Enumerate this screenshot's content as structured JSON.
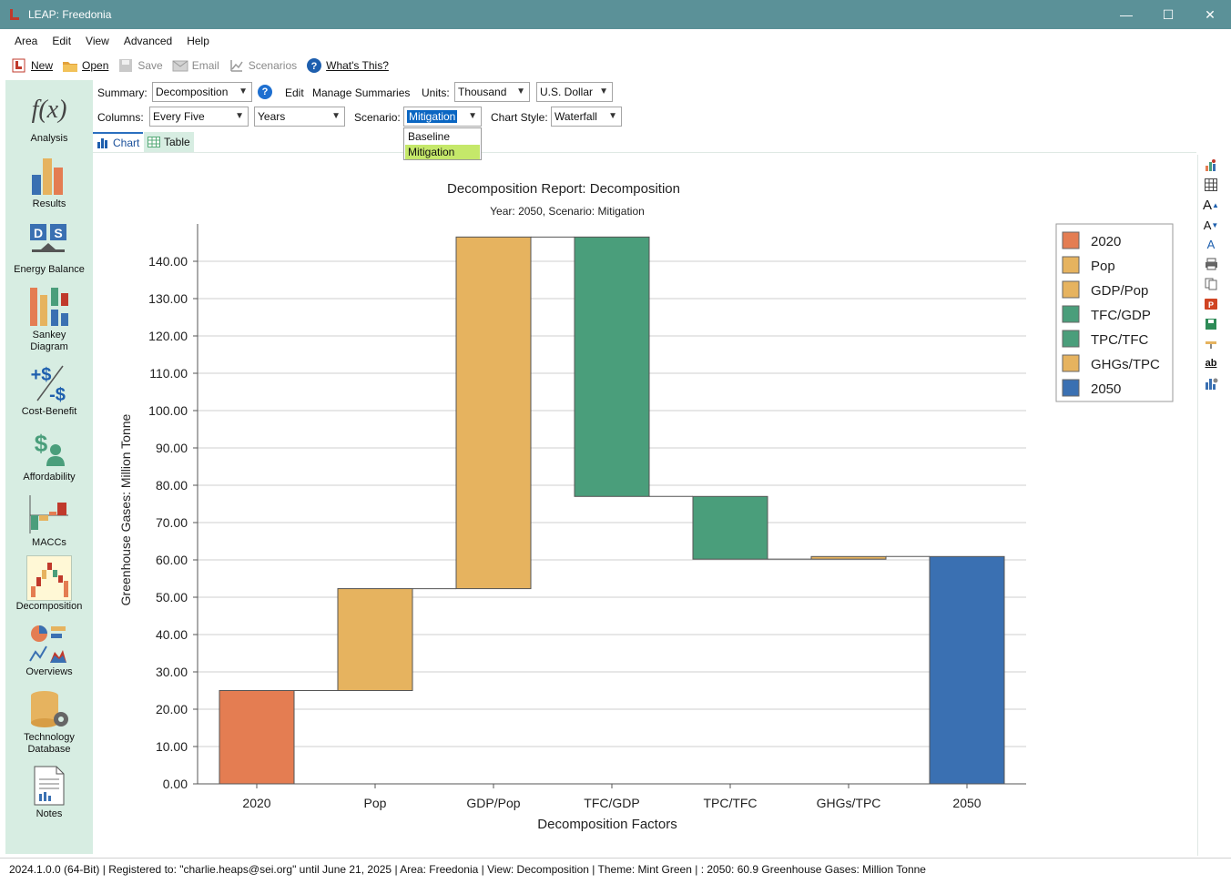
{
  "window": {
    "title": "LEAP: Freedonia",
    "minimize": "—",
    "maximize": "☐",
    "close": "✕"
  },
  "menu": [
    "Area",
    "Edit",
    "View",
    "Advanced",
    "Help"
  ],
  "toolbar": {
    "new": "New",
    "open": "Open",
    "save": "Save",
    "email": "Email",
    "scenarios": "Scenarios",
    "whats_this": "What's This?"
  },
  "sidebar": [
    {
      "label": "Analysis",
      "icon": "function-icon"
    },
    {
      "label": "Results",
      "icon": "bar-chart-icon"
    },
    {
      "label": "Energy Balance",
      "icon": "energy-balance-icon"
    },
    {
      "label": "Sankey Diagram",
      "icon": "sankey-icon"
    },
    {
      "label": "Cost-Benefit",
      "icon": "cost-benefit-icon"
    },
    {
      "label": "Affordability",
      "icon": "affordability-icon"
    },
    {
      "label": "MACCs",
      "icon": "macc-icon"
    },
    {
      "label": "Decomposition",
      "icon": "decomposition-icon"
    },
    {
      "label": "Overviews",
      "icon": "overviews-icon"
    },
    {
      "label": "Technology Database",
      "icon": "technology-database-icon"
    },
    {
      "label": "Notes",
      "icon": "notes-icon"
    }
  ],
  "controls": {
    "summary_label": "Summary:",
    "summary_value": "Decomposition",
    "edit": "Edit",
    "manage_summaries": "Manage Summaries",
    "units_label": "Units:",
    "units_value": "Thousand",
    "currency_value": "U.S. Dollar",
    "columns_label": "Columns:",
    "columns_value": "Every Five",
    "years_value": "Years",
    "scenario_label": "Scenario:",
    "scenario_value": "Mitigation",
    "scenario_options": [
      "Baseline",
      "Mitigation"
    ],
    "chart_style_label": "Chart Style:",
    "chart_style_value": "Waterfall"
  },
  "tabs": {
    "chart": "Chart",
    "table": "Table"
  },
  "status": {
    "version": "2024.1.0.0 (64-Bit)",
    "registered": "Registered to: \"charlie.heaps@sei.org\" until June 21, 2025",
    "area": "Area: Freedonia",
    "view": "View: Decomposition",
    "theme": "Theme: Mint Green",
    "info": ": 2050: 60.9 Greenhouse Gases: Million Tonne"
  },
  "colors": {
    "orange": "#e47d52",
    "gold": "#e6b35f",
    "green": "#4a9e7b",
    "blue": "#3a70b2"
  },
  "chart_data": {
    "type": "waterfall",
    "title": "Decomposition Report: Decomposition",
    "subtitle": "Year: 2050, Scenario: Mitigation",
    "xlabel": "Decomposition Factors",
    "ylabel": "Greenhouse Gases: Million Tonne",
    "ylim": [
      0,
      150
    ],
    "yticks": [
      "0.00",
      "10.00",
      "20.00",
      "30.00",
      "40.00",
      "50.00",
      "60.00",
      "70.00",
      "80.00",
      "90.00",
      "100.00",
      "110.00",
      "120.00",
      "130.00",
      "140.00"
    ],
    "grid": true,
    "legend_position": "right",
    "categories": [
      "2020",
      "Pop",
      "GDP/Pop",
      "TFC/GDP",
      "TPC/TFC",
      "GHGs/TPC",
      "2050"
    ],
    "bars": [
      {
        "name": "2020",
        "start": 0,
        "end": 25.0,
        "color": "#e47d52"
      },
      {
        "name": "Pop",
        "start": 25.0,
        "end": 52.3,
        "color": "#e6b35f"
      },
      {
        "name": "GDP/Pop",
        "start": 52.3,
        "end": 146.5,
        "color": "#e6b35f"
      },
      {
        "name": "TFC/GDP",
        "start": 146.5,
        "end": 77.0,
        "color": "#4a9e7b"
      },
      {
        "name": "TPC/TFC",
        "start": 77.0,
        "end": 60.2,
        "color": "#4a9e7b"
      },
      {
        "name": "GHGs/TPC",
        "start": 60.2,
        "end": 60.9,
        "color": "#e6b35f"
      },
      {
        "name": "2050",
        "start": 0,
        "end": 60.9,
        "color": "#3a70b2"
      }
    ]
  }
}
